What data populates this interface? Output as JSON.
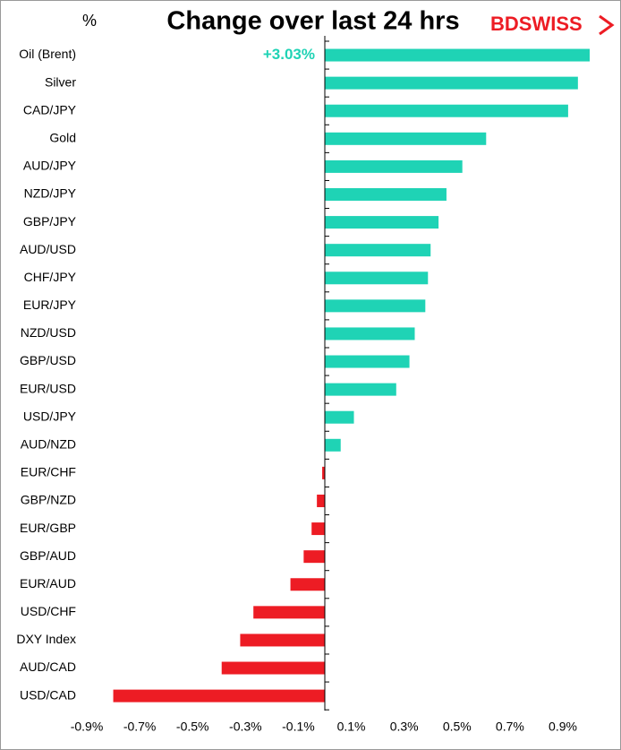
{
  "chart_data": {
    "type": "barh",
    "title": "Change over last 24 hrs",
    "unit_label": "%",
    "logo": "BDSWISS",
    "categories": [
      "Oil (Brent)",
      "Silver",
      "CAD/JPY",
      "Gold",
      "AUD/JPY",
      "NZD/JPY",
      "GBP/JPY",
      "AUD/USD",
      "CHF/JPY",
      "EUR/JPY",
      "NZD/USD",
      "GBP/USD",
      "EUR/USD",
      "USD/JPY",
      "AUD/NZD",
      "EUR/CHF",
      "GBP/NZD",
      "EUR/GBP",
      "GBP/AUD",
      "EUR/AUD",
      "USD/CHF",
      "DXY Index",
      "AUD/CAD",
      "USD/CAD"
    ],
    "values": [
      3.03,
      0.957,
      0.92,
      0.61,
      0.52,
      0.46,
      0.43,
      0.4,
      0.39,
      0.38,
      0.34,
      0.32,
      0.27,
      0.11,
      0.06,
      -0.01,
      -0.03,
      -0.05,
      -0.08,
      -0.13,
      -0.27,
      -0.32,
      -0.39,
      -0.8
    ],
    "value_labels": [
      "+3.03%",
      null,
      null,
      null,
      null,
      null,
      null,
      null,
      null,
      null,
      null,
      null,
      null,
      null,
      null,
      null,
      null,
      null,
      null,
      null,
      null,
      null,
      null,
      null
    ],
    "positive_color": "#1fd3b5",
    "negative_color": "#ed1c24",
    "xlim": [
      -0.9,
      1.0
    ],
    "xticks": [
      {
        "value": -0.9,
        "label": "-0.9%"
      },
      {
        "value": -0.7,
        "label": "-0.7%"
      },
      {
        "value": -0.5,
        "label": "-0.5%"
      },
      {
        "value": -0.3,
        "label": "-0.3%"
      },
      {
        "value": -0.1,
        "label": "-0.1%"
      },
      {
        "value": 0.1,
        "label": "0.1%"
      },
      {
        "value": 0.3,
        "label": "0.3%"
      },
      {
        "value": 0.5,
        "label": "0.5%"
      },
      {
        "value": 0.7,
        "label": "0.7%"
      },
      {
        "value": 0.9,
        "label": "0.9%"
      }
    ],
    "grid": false
  }
}
